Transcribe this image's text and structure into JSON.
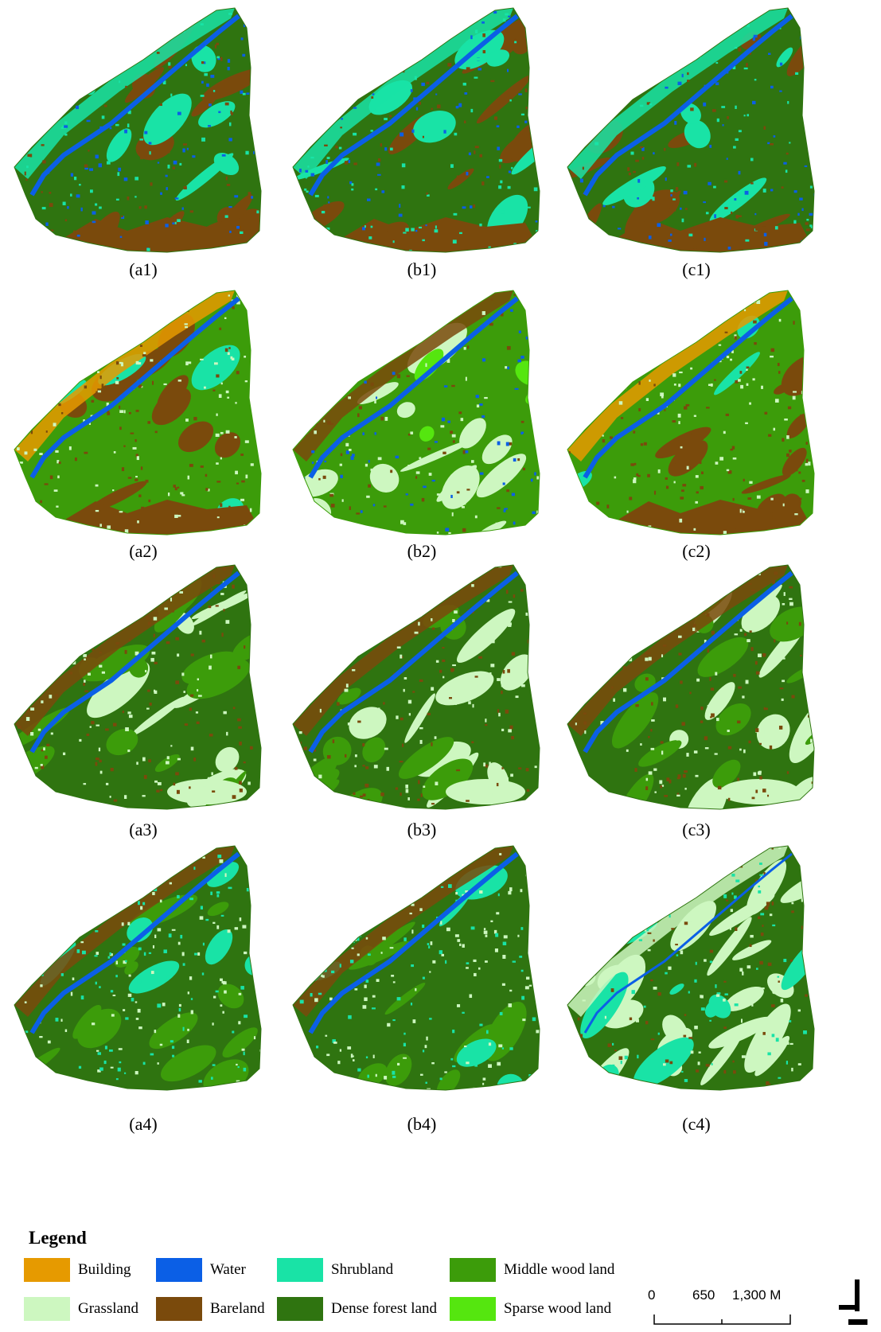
{
  "panels": [
    {
      "label": "(a1)",
      "type": "t1",
      "seed": 11
    },
    {
      "label": "(b1)",
      "type": "t1",
      "seed": 12
    },
    {
      "label": "(c1)",
      "type": "t1",
      "seed": 13
    },
    {
      "label": "(a2)",
      "type": "t2",
      "seed": 21
    },
    {
      "label": "(b2)",
      "type": "t2b",
      "seed": 22
    },
    {
      "label": "(c2)",
      "type": "t2",
      "seed": 23
    },
    {
      "label": "(a3)",
      "type": "t3",
      "seed": 31
    },
    {
      "label": "(b3)",
      "type": "t3",
      "seed": 32
    },
    {
      "label": "(c3)",
      "type": "t3",
      "seed": 33
    },
    {
      "label": "(a4)",
      "type": "t4",
      "seed": 41
    },
    {
      "label": "(b4)",
      "type": "t4",
      "seed": 42
    },
    {
      "label": "(c4)",
      "type": "t4c",
      "seed": 43
    }
  ],
  "legend": {
    "title": "Legend",
    "items": [
      {
        "label": "Building",
        "color": "#e69a00"
      },
      {
        "label": "Water",
        "color": "#0b5fe6"
      },
      {
        "label": "Shrubland",
        "color": "#19e3a6"
      },
      {
        "label": "Middle wood land",
        "color": "#3c9c0a"
      },
      {
        "label": "Grassland",
        "color": "#cdf7c0"
      },
      {
        "label": "Bareland",
        "color": "#7a4a0c"
      },
      {
        "label": "Dense forest land",
        "color": "#2f7410"
      },
      {
        "label": "Sparse wood land",
        "color": "#55e60f"
      }
    ]
  },
  "scalebar": {
    "labels": [
      "0",
      "650",
      "1,300 M"
    ]
  }
}
